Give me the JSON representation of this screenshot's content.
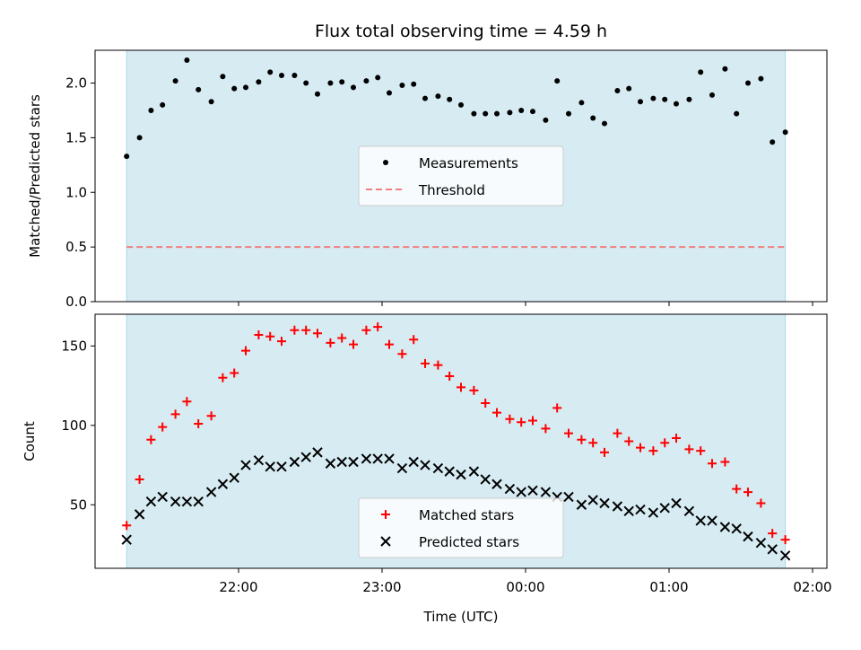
{
  "chart_data": {
    "title": "Flux total observing time = 4.59 h",
    "xlabel": "Time (UTC)",
    "x_tick_labels": [
      "22:00",
      "23:00",
      "00:00",
      "01:00",
      "02:00"
    ],
    "x_ticks_hours": [
      22,
      23,
      24,
      25,
      26
    ],
    "xlim_hours": [
      21.0,
      26.1
    ],
    "observing_window_hours": [
      21.22,
      25.81
    ],
    "colors": {
      "shade": "#add8e6",
      "measurements": "#000000",
      "threshold": "#f08080",
      "matched": "#ff0000",
      "predicted": "#000000"
    },
    "panels": [
      {
        "type": "scatter",
        "ylabel": "Matched/Predicted stars",
        "ylim": [
          0,
          2.3
        ],
        "y_ticks": [
          0.0,
          0.5,
          1.0,
          1.5,
          2.0
        ],
        "y_tick_labels": [
          "0.0",
          "0.5",
          "1.0",
          "1.5",
          "2.0"
        ],
        "legend": {
          "position": "center",
          "entries": [
            "Measurements",
            "Threshold"
          ]
        },
        "threshold": 0.5,
        "series": [
          {
            "name": "Measurements",
            "x": [
              21.22,
              21.31,
              21.39,
              21.47,
              21.56,
              21.64,
              21.72,
              21.81,
              21.89,
              21.97,
              22.05,
              22.14,
              22.22,
              22.3,
              22.39,
              22.47,
              22.55,
              22.64,
              22.72,
              22.8,
              22.89,
              22.97,
              23.05,
              23.14,
              23.22,
              23.3,
              23.39,
              23.47,
              23.55,
              23.64,
              23.72,
              23.8,
              23.89,
              23.97,
              24.05,
              24.14,
              24.22,
              24.3,
              24.39,
              24.47,
              24.55,
              24.64,
              24.72,
              24.8,
              24.89,
              24.97,
              25.05,
              25.14,
              25.22,
              25.3,
              25.39,
              25.47,
              25.55,
              25.64,
              25.72,
              25.81
            ],
            "y": [
              1.33,
              1.5,
              1.75,
              1.8,
              2.02,
              2.21,
              1.94,
              1.83,
              2.06,
              1.95,
              1.96,
              2.01,
              2.1,
              2.07,
              2.07,
              2.0,
              1.9,
              2.0,
              2.01,
              1.96,
              2.02,
              2.05,
              1.91,
              1.98,
              1.99,
              1.86,
              1.88,
              1.85,
              1.8,
              1.72,
              1.72,
              1.72,
              1.73,
              1.75,
              1.74,
              1.66,
              2.02,
              1.72,
              1.82,
              1.68,
              1.63,
              1.93,
              1.95,
              1.83,
              1.86,
              1.85,
              1.81,
              1.85,
              2.1,
              1.89,
              2.13,
              1.72,
              2.0,
              2.04,
              1.46,
              1.55
            ]
          }
        ]
      },
      {
        "type": "scatter",
        "ylabel": "Count",
        "ylim": [
          10,
          170
        ],
        "y_ticks": [
          50,
          100,
          150
        ],
        "y_tick_labels": [
          "50",
          "100",
          "150"
        ],
        "legend": {
          "position": "lower center",
          "entries": [
            "Matched stars",
            "Predicted stars"
          ]
        },
        "series": [
          {
            "name": "Matched stars",
            "x": [
              21.22,
              21.31,
              21.39,
              21.47,
              21.56,
              21.64,
              21.72,
              21.81,
              21.89,
              21.97,
              22.05,
              22.14,
              22.22,
              22.3,
              22.39,
              22.47,
              22.55,
              22.64,
              22.72,
              22.8,
              22.89,
              22.97,
              23.05,
              23.14,
              23.22,
              23.3,
              23.39,
              23.47,
              23.55,
              23.64,
              23.72,
              23.8,
              23.89,
              23.97,
              24.05,
              24.14,
              24.22,
              24.3,
              24.39,
              24.47,
              24.55,
              24.64,
              24.72,
              24.8,
              24.89,
              24.97,
              25.05,
              25.14,
              25.22,
              25.3,
              25.39,
              25.47,
              25.55,
              25.64,
              25.72,
              25.81
            ],
            "y": [
              37,
              66,
              91,
              99,
              107,
              115,
              101,
              106,
              130,
              133,
              147,
              157,
              156,
              153,
              160,
              160,
              158,
              152,
              155,
              151,
              160,
              162,
              151,
              145,
              154,
              139,
              138,
              131,
              124,
              122,
              114,
              108,
              104,
              102,
              103,
              98,
              111,
              95,
              91,
              89,
              83,
              95,
              90,
              86,
              84,
              89,
              92,
              85,
              84,
              76,
              77,
              60,
              58,
              51,
              32,
              28
            ]
          },
          {
            "name": "Predicted stars",
            "x": [
              21.22,
              21.31,
              21.39,
              21.47,
              21.56,
              21.64,
              21.72,
              21.81,
              21.89,
              21.97,
              22.05,
              22.14,
              22.22,
              22.3,
              22.39,
              22.47,
              22.55,
              22.64,
              22.72,
              22.8,
              22.89,
              22.97,
              23.05,
              23.14,
              23.22,
              23.3,
              23.39,
              23.47,
              23.55,
              23.64,
              23.72,
              23.8,
              23.89,
              23.97,
              24.05,
              24.14,
              24.22,
              24.3,
              24.39,
              24.47,
              24.55,
              24.64,
              24.72,
              24.8,
              24.89,
              24.97,
              25.05,
              25.14,
              25.22,
              25.3,
              25.39,
              25.47,
              25.55,
              25.64,
              25.72,
              25.81
            ],
            "y": [
              28,
              44,
              52,
              55,
              52,
              52,
              52,
              58,
              63,
              67,
              75,
              78,
              74,
              74,
              77,
              80,
              83,
              76,
              77,
              77,
              79,
              79,
              79,
              73,
              77,
              75,
              73,
              71,
              69,
              71,
              66,
              63,
              60,
              58,
              59,
              58,
              55,
              55,
              50,
              53,
              51,
              49,
              46,
              47,
              45,
              48,
              51,
              46,
              40,
              40,
              36,
              35,
              30,
              26,
              22,
              18
            ]
          }
        ]
      }
    ]
  }
}
